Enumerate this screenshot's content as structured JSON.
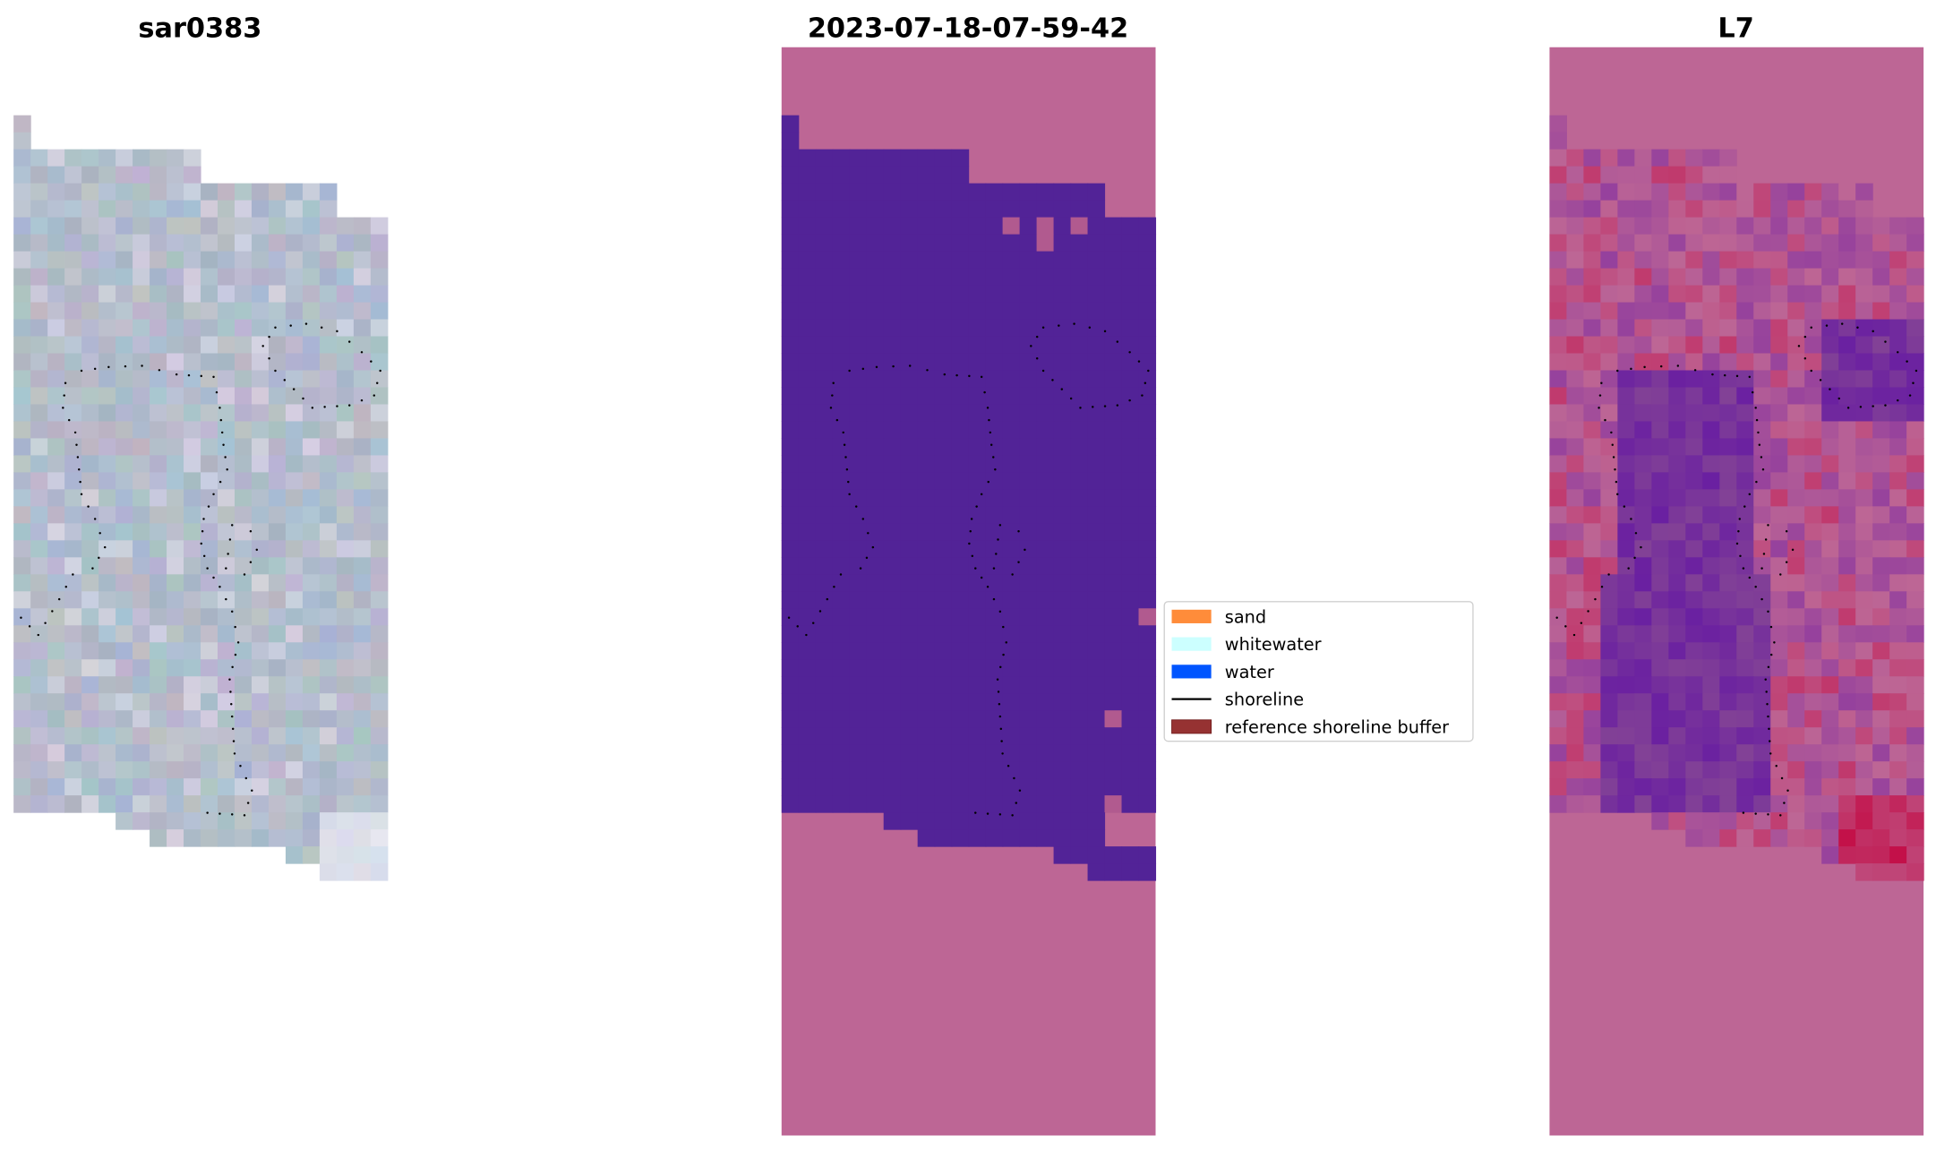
{
  "panels": [
    {
      "title": "sar0383",
      "kind": "rgb"
    },
    {
      "title": "2023-07-18-07-59-42",
      "kind": "classified"
    },
    {
      "title": "L7",
      "kind": "index"
    }
  ],
  "legend": {
    "items": [
      {
        "label": "sand",
        "color": "#ff8c3a",
        "type": "patch"
      },
      {
        "label": "whitewater",
        "color": "#ccffff",
        "type": "patch"
      },
      {
        "label": "water",
        "color": "#0055ff",
        "type": "patch"
      },
      {
        "label": "shoreline",
        "color": "#000000",
        "type": "line"
      },
      {
        "label": "reference shoreline buffer",
        "color": "#963232",
        "type": "patch"
      }
    ]
  },
  "colors": {
    "mask_pink": "#bd6695",
    "water_purple": "#522397",
    "index_red": "#c4003a",
    "index_violet": "#5a0aa8",
    "rgb_base": "#b3bccb"
  }
}
